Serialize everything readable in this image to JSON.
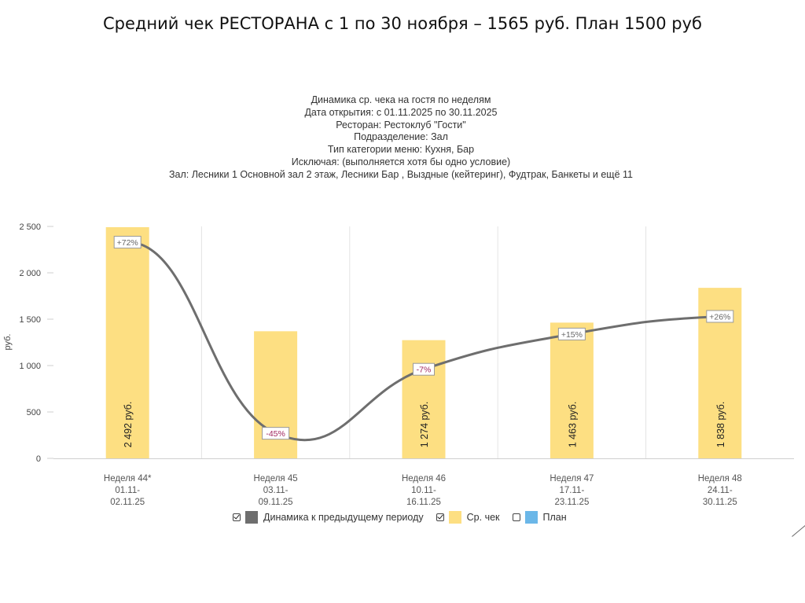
{
  "slide_title": "Средний чек РЕСТОРАНА с 1 по 30 ноября – 1565 руб. План 1500 руб",
  "chart_header": [
    "Динамика ср. чека на гостя по неделям",
    "Дата открытия: с 01.11.2025 по 30.11.2025",
    "Ресторан: Рестоклуб \"Гости\"",
    "Подразделение: Зал",
    "Тип категории меню: Кухня, Бар",
    "Исключая: (выполняется хотя бы одно условие)",
    "Зал: Лесники 1 Основной зал 2 этаж, Лесники Бар , Выздные (кейтеринг), Фудтрак, Банкеты и ещё 11"
  ],
  "chart_data": {
    "type": "bar",
    "ylabel": "руб.",
    "ylim": [
      0,
      2500
    ],
    "yticks": [
      "0",
      "500",
      "1 000",
      "1 500",
      "2 000",
      "2 500"
    ],
    "ytick_values": [
      0,
      500,
      1000,
      1500,
      2000,
      2500
    ],
    "grid": "vertical",
    "categories": [
      [
        "Неделя 44*",
        "01.11-",
        "02.11.25"
      ],
      [
        "Неделя 45",
        "03.11-",
        "09.11.25"
      ],
      [
        "Неделя 46",
        "10.11-",
        "16.11.25"
      ],
      [
        "Неделя 47",
        "17.11-",
        "23.11.25"
      ],
      [
        "Неделя 48",
        "24.11-",
        "30.11.25"
      ]
    ],
    "series": [
      {
        "name": "Ср. чек",
        "type": "bar",
        "color": "#fddf82",
        "values": [
          2492,
          1370,
          1274,
          1463,
          1838
        ],
        "labels": [
          "2 492 руб.",
          "",
          "1 274 руб.",
          "1 463 руб.",
          "1 838 руб."
        ]
      },
      {
        "name": "Динамика к предыдущему периоду",
        "type": "line",
        "color": "#6e6e6e",
        "values": [
          2330,
          270,
          960,
          1340,
          1530
        ],
        "labels": [
          "+72%",
          "-45%",
          "-7%",
          "+15%",
          "+26%"
        ],
        "label_colors": [
          "#666666",
          "#a0265e",
          "#a0265e",
          "#666666",
          "#666666"
        ]
      }
    ],
    "legend": [
      {
        "label": "Динамика к предыдущему периоду",
        "checked": true,
        "color": "#6e6e6e"
      },
      {
        "label": "Ср. чек",
        "checked": true,
        "color": "#fddf82"
      },
      {
        "label": "План",
        "checked": false,
        "color": "#6bb7e8"
      }
    ],
    "legend_position": "bottom"
  }
}
